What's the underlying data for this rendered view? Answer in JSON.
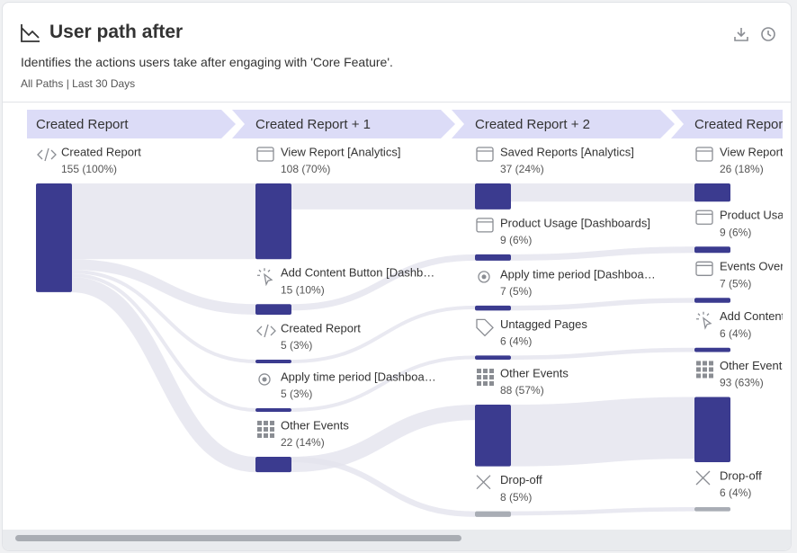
{
  "header": {
    "title": "User path after",
    "subtitle": "Identifies the actions users take after engaging with 'Core Feature'.",
    "filters": "All Paths | Last 30 Days"
  },
  "columns": [
    {
      "title": "Created Report",
      "nodes": [
        {
          "label": "Created Report",
          "value_label": "155 (100%)",
          "count": 155,
          "color": "#3b3b8f"
        }
      ]
    },
    {
      "title": "Created Report + 1",
      "nodes": [
        {
          "label": "View Report [Analytics]",
          "value_label": "108 (70%)",
          "count": 108,
          "color": "#3b3b8f"
        },
        {
          "label": "Add Content Button [Dashb…",
          "value_label": "15 (10%)",
          "count": 15,
          "color": "#3b3b8f"
        },
        {
          "label": "Created Report",
          "value_label": "5 (3%)",
          "count": 5,
          "color": "#3b3b8f"
        },
        {
          "label": "Apply time period [Dashboa…",
          "value_label": "5 (3%)",
          "count": 5,
          "color": "#3b3b8f"
        },
        {
          "label": "Other Events",
          "value_label": "22 (14%)",
          "count": 22,
          "color": "#3b3b8f"
        }
      ]
    },
    {
      "title": "Created Report + 2",
      "nodes": [
        {
          "label": "Saved Reports [Analytics]",
          "value_label": "37 (24%)",
          "count": 37,
          "color": "#3b3b8f"
        },
        {
          "label": "Product Usage [Dashboards]",
          "value_label": "9 (6%)",
          "count": 9,
          "color": "#3b3b8f"
        },
        {
          "label": "Apply time period [Dashboa…",
          "value_label": "7 (5%)",
          "count": 7,
          "color": "#3b3b8f"
        },
        {
          "label": "Untagged Pages",
          "value_label": "6 (4%)",
          "count": 6,
          "color": "#3b3b8f"
        },
        {
          "label": "Other Events",
          "value_label": "88 (57%)",
          "count": 88,
          "color": "#3b3b8f"
        },
        {
          "label": "Drop-off",
          "value_label": "8 (5%)",
          "count": 8,
          "color": "#a9adb5"
        }
      ]
    },
    {
      "title": "Created Report",
      "nodes": [
        {
          "label": "View Report [",
          "value_label": "26 (18%)",
          "count": 26,
          "color": "#3b3b8f"
        },
        {
          "label": "Product Usag",
          "value_label": "9 (6%)",
          "count": 9,
          "color": "#3b3b8f"
        },
        {
          "label": "Events Overv",
          "value_label": "7 (5%)",
          "count": 7,
          "color": "#3b3b8f"
        },
        {
          "label": "Add Content",
          "value_label": "6 (4%)",
          "count": 6,
          "color": "#3b3b8f"
        },
        {
          "label": "Other Events",
          "value_label": "93 (63%)",
          "count": 93,
          "color": "#3b3b8f"
        },
        {
          "label": "Drop-off",
          "value_label": "6 (4%)",
          "count": 6,
          "color": "#a9adb5"
        }
      ]
    }
  ]
}
